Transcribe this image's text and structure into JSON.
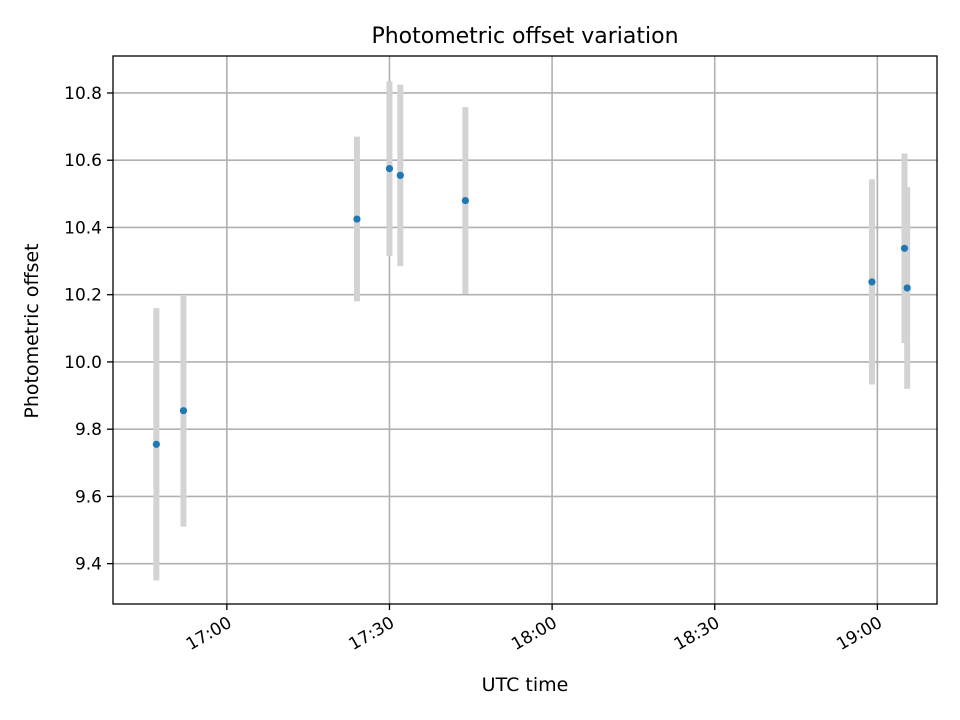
{
  "chart_data": {
    "type": "scatter",
    "title": "Photometric offset variation",
    "xlabel": "UTC time",
    "ylabel": "Photometric offset",
    "xlim": [
      "16:39",
      "19:11"
    ],
    "ylim": [
      9.28,
      10.91
    ],
    "xticks": [
      "17:00",
      "17:30",
      "18:00",
      "18:30",
      "19:00"
    ],
    "yticks": [
      "9.4",
      "9.6",
      "9.8",
      "10.0",
      "10.2",
      "10.4",
      "10.6",
      "10.8"
    ],
    "grid": true,
    "colors": {
      "point": "#1f77b4",
      "errorbar": "#d3d3d3",
      "grid": "#b0b0b0"
    },
    "points": [
      {
        "time": "16:47",
        "value": 9.755,
        "error": 0.405
      },
      {
        "time": "16:52",
        "value": 9.855,
        "error": 0.345
      },
      {
        "time": "17:24",
        "value": 10.425,
        "error": 0.245
      },
      {
        "time": "17:30",
        "value": 10.575,
        "error": 0.26
      },
      {
        "time": "17:32",
        "value": 10.555,
        "error": 0.27
      },
      {
        "time": "17:44",
        "value": 10.48,
        "error": 0.278
      },
      {
        "time": "18:59",
        "value": 10.238,
        "error": 0.305
      },
      {
        "time": "19:05",
        "value": 10.338,
        "error": 0.282
      },
      {
        "time": "19:05.5",
        "value": 10.22,
        "error": 0.3
      }
    ]
  }
}
